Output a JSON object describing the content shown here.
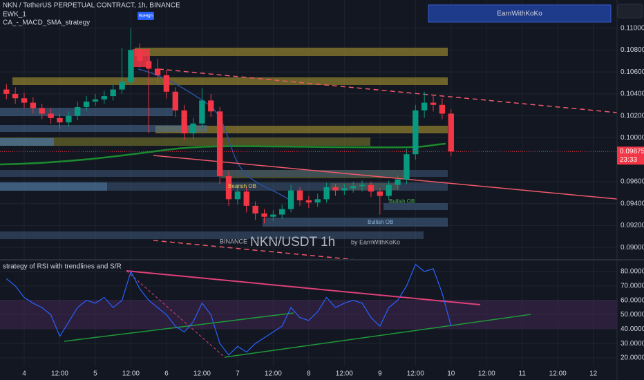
{
  "chart_data": [
    {
      "type": "candlestick",
      "title": "NKN / TetherUS PERPETUAL CONTRACT, 1h, BINANCE",
      "indicators": [
        "EWK_1",
        "CA_-_MACD_SMA_strategy"
      ],
      "banner": "EarnWithKoKo",
      "watermark": {
        "exchange": "BINANCE",
        "symbol": "NKN/USDT 1h",
        "author": "by EarnWithKoKo"
      },
      "labels": [
        "BoHigh",
        "Bearish OB",
        "Bullish OB",
        "Bullish OB"
      ],
      "last_price": 0.09875,
      "countdown": "23:33",
      "up_color": "#089981",
      "down_color": "#f23645",
      "x": [
        -6,
        -3,
        0,
        3,
        6,
        9,
        12,
        15,
        18,
        21,
        24,
        27,
        30,
        33,
        36,
        39,
        42,
        45,
        48,
        51,
        54,
        57,
        60,
        63,
        66,
        69,
        72,
        75,
        78,
        81,
        84,
        87,
        90,
        93,
        96,
        99,
        102,
        105,
        108,
        111,
        114,
        117,
        120,
        123,
        126,
        129,
        132,
        135,
        138,
        141,
        144
      ],
      "open": [
        0.1044,
        0.104,
        0.1036,
        0.1032,
        0.1027,
        0.1022,
        0.1018,
        0.1014,
        0.102,
        0.1028,
        0.1033,
        0.1035,
        0.1038,
        0.1044,
        0.1051,
        0.108,
        0.107,
        0.1063,
        0.1057,
        0.1042,
        0.1025,
        0.1004,
        0.1013,
        0.1034,
        0.1024,
        0.0965,
        0.0944,
        0.0951,
        0.0938,
        0.0931,
        0.0928,
        0.093,
        0.0935,
        0.0952,
        0.0943,
        0.0941,
        0.0944,
        0.0955,
        0.0952,
        0.0954,
        0.0956,
        0.0957,
        0.0951,
        0.0947,
        0.0957,
        0.0962,
        0.0985,
        0.1025,
        0.1032,
        0.103,
        0.1022
      ],
      "high": [
        0.1049,
        0.1046,
        0.1041,
        0.1037,
        0.1031,
        0.1027,
        0.1022,
        0.1024,
        0.1033,
        0.1038,
        0.104,
        0.1043,
        0.1049,
        0.1082,
        0.11,
        0.1086,
        0.1078,
        0.1072,
        0.1062,
        0.1046,
        0.103,
        0.1018,
        0.1045,
        0.104,
        0.1028,
        0.097,
        0.0958,
        0.0955,
        0.0942,
        0.0935,
        0.0934,
        0.0939,
        0.0957,
        0.0955,
        0.0947,
        0.0949,
        0.0959,
        0.0958,
        0.0958,
        0.096,
        0.0961,
        0.096,
        0.0954,
        0.0961,
        0.0966,
        0.099,
        0.103,
        0.1042,
        0.1038,
        0.1036,
        0.1026
      ],
      "low": [
        0.1035,
        0.1031,
        0.1027,
        0.1022,
        0.1017,
        0.1013,
        0.1008,
        0.101,
        0.1016,
        0.1024,
        0.1029,
        0.1031,
        0.1034,
        0.104,
        0.1048,
        0.1064,
        0.1004,
        0.105,
        0.1036,
        0.1019,
        0.0998,
        0.0999,
        0.1009,
        0.1019,
        0.0958,
        0.0938,
        0.0939,
        0.0932,
        0.0925,
        0.0922,
        0.0924,
        0.0926,
        0.0932,
        0.0938,
        0.0936,
        0.0937,
        0.0941,
        0.0947,
        0.0948,
        0.095,
        0.0951,
        0.0946,
        0.093,
        0.0943,
        0.0953,
        0.0958,
        0.098,
        0.1018,
        0.1024,
        0.1017,
        0.0983
      ],
      "close": [
        0.104,
        0.1036,
        0.1032,
        0.1027,
        0.1022,
        0.1018,
        0.1014,
        0.102,
        0.1028,
        0.1033,
        0.1035,
        0.1038,
        0.1044,
        0.1051,
        0.108,
        0.107,
        0.1063,
        0.1057,
        0.1042,
        0.1025,
        0.1004,
        0.1013,
        0.1034,
        0.1024,
        0.0965,
        0.0944,
        0.0951,
        0.0938,
        0.0931,
        0.0928,
        0.093,
        0.0935,
        0.0952,
        0.0943,
        0.0941,
        0.0944,
        0.0955,
        0.0952,
        0.0954,
        0.0956,
        0.0957,
        0.0951,
        0.0947,
        0.0957,
        0.0962,
        0.0985,
        0.1025,
        0.1032,
        0.103,
        0.1022,
        0.09875
      ],
      "xlim": [
        -8.16,
        200
      ],
      "ylim": [
        0.08894,
        0.11256
      ],
      "yticks": [
        {
          "value": 0.11,
          "label": "0.11000"
        },
        {
          "value": 0.108,
          "label": "0.10800"
        },
        {
          "value": 0.106,
          "label": "0.10600"
        },
        {
          "value": 0.104,
          "label": "0.10400"
        },
        {
          "value": 0.102,
          "label": "0.10200"
        },
        {
          "value": 0.1,
          "label": "0.10000"
        },
        {
          "value": 0.096,
          "label": "0.09600"
        },
        {
          "value": 0.094,
          "label": "0.09400"
        },
        {
          "value": 0.092,
          "label": "0.09200"
        },
        {
          "value": 0.09,
          "label": "0.09000"
        }
      ],
      "grid": true
    },
    {
      "type": "line",
      "title": "strategy of RSI with trendlines and S/R",
      "x": [
        -6,
        -3,
        0,
        3,
        6,
        9,
        12,
        15,
        18,
        21,
        24,
        27,
        30,
        33,
        36,
        39,
        42,
        45,
        48,
        51,
        54,
        57,
        60,
        63,
        66,
        69,
        72,
        75,
        78,
        81,
        84,
        87,
        90,
        93,
        96,
        99,
        102,
        105,
        108,
        111,
        114,
        117,
        120,
        123,
        126,
        129,
        132,
        135,
        138,
        141,
        144
      ],
      "values": [
        75,
        70,
        62,
        58,
        55,
        50,
        35,
        45,
        55,
        60,
        58,
        62,
        55,
        60,
        80,
        68,
        60,
        55,
        50,
        42,
        38,
        45,
        58,
        50,
        30,
        22,
        28,
        24,
        30,
        34,
        38,
        42,
        55,
        48,
        46,
        52,
        62,
        55,
        58,
        60,
        58,
        48,
        42,
        55,
        60,
        70,
        85,
        80,
        82,
        65,
        42
      ],
      "color": "#2962ff",
      "xlim": [
        -8.16,
        200
      ],
      "ylim": [
        14.2,
        87.7
      ],
      "yticks": [
        {
          "value": 80,
          "label": "80.00000"
        },
        {
          "value": 70,
          "label": "70.00000"
        },
        {
          "value": 60,
          "label": "60.00000"
        },
        {
          "value": 50,
          "label": "50.00000"
        },
        {
          "value": 40,
          "label": "40.00000"
        },
        {
          "value": 30,
          "label": "30.00000"
        },
        {
          "value": 20,
          "label": "20.00000"
        }
      ],
      "xticks": [
        {
          "value": 0,
          "label": "4"
        },
        {
          "value": 12,
          "label": "12:00"
        },
        {
          "value": 24,
          "label": "5"
        },
        {
          "value": 36,
          "label": "12:00"
        },
        {
          "value": 48,
          "label": "6"
        },
        {
          "value": 60,
          "label": "12:00"
        },
        {
          "value": 72,
          "label": "7"
        },
        {
          "value": 84,
          "label": "12:00"
        },
        {
          "value": 96,
          "label": "8"
        },
        {
          "value": 108,
          "label": "12:00"
        },
        {
          "value": 120,
          "label": "9"
        },
        {
          "value": 132,
          "label": "12:00"
        },
        {
          "value": 144,
          "label": "10"
        },
        {
          "value": 156,
          "label": "12:00"
        },
        {
          "value": 168,
          "label": "11"
        },
        {
          "value": 180,
          "label": "12:00"
        },
        {
          "value": 192,
          "label": "12"
        }
      ],
      "grid": true
    }
  ]
}
